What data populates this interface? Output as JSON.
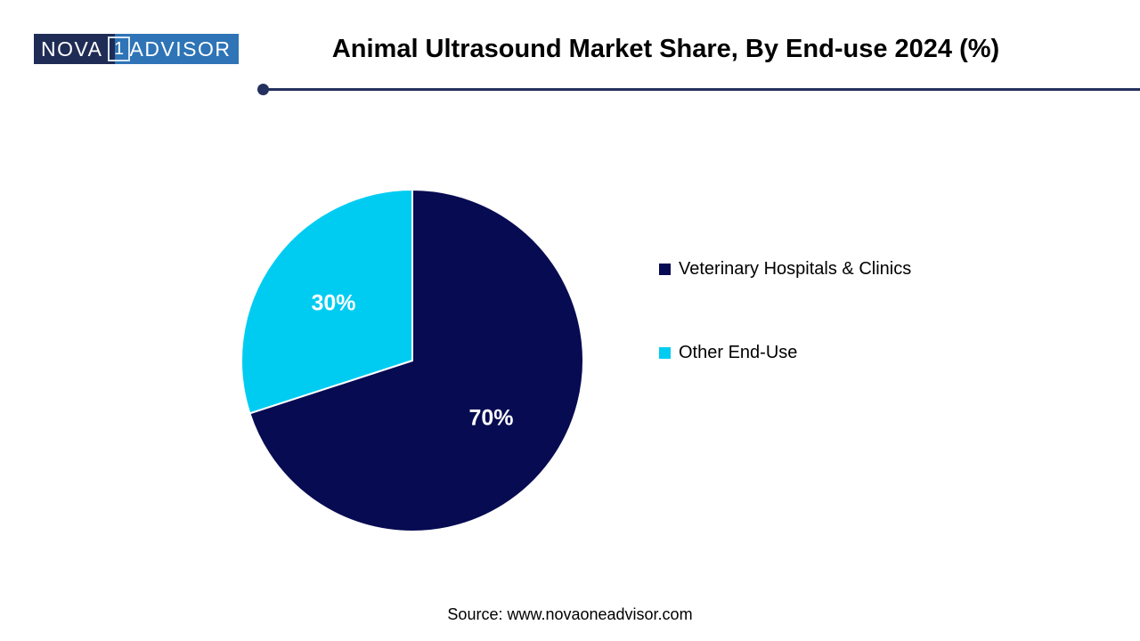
{
  "logo": {
    "nova": "NOVA",
    "one": "1",
    "advisor": "ADVISOR",
    "navy_bg": "#1f2c55",
    "blue_bg": "#2e74b6"
  },
  "header": {
    "title": "Animal Ultrasound Market Share, By End-use 2024 (%)",
    "rule_color": "#24305e"
  },
  "chart_data": {
    "type": "pie",
    "title": "Animal Ultrasound Market Share, By End-use 2024 (%)",
    "categories": [
      "Veterinary Hospitals & Clinics",
      "Other End-Use"
    ],
    "values": [
      70,
      30
    ],
    "slices": [
      {
        "label": "Veterinary Hospitals & Clinics",
        "value": 70,
        "display": "70%",
        "color": "#070b52"
      },
      {
        "label": "Other End-Use",
        "value": 30,
        "display": "30%",
        "color": "#00ccf2"
      }
    ],
    "start_angle_deg": 0,
    "direction": "clockwise",
    "slice_border_color": "#ffffff",
    "data_label_color": "#ffffff",
    "label_radius_frac": 0.57,
    "legend_position": "right"
  },
  "footer": {
    "source": "Source: www.novaoneadvisor.com"
  }
}
